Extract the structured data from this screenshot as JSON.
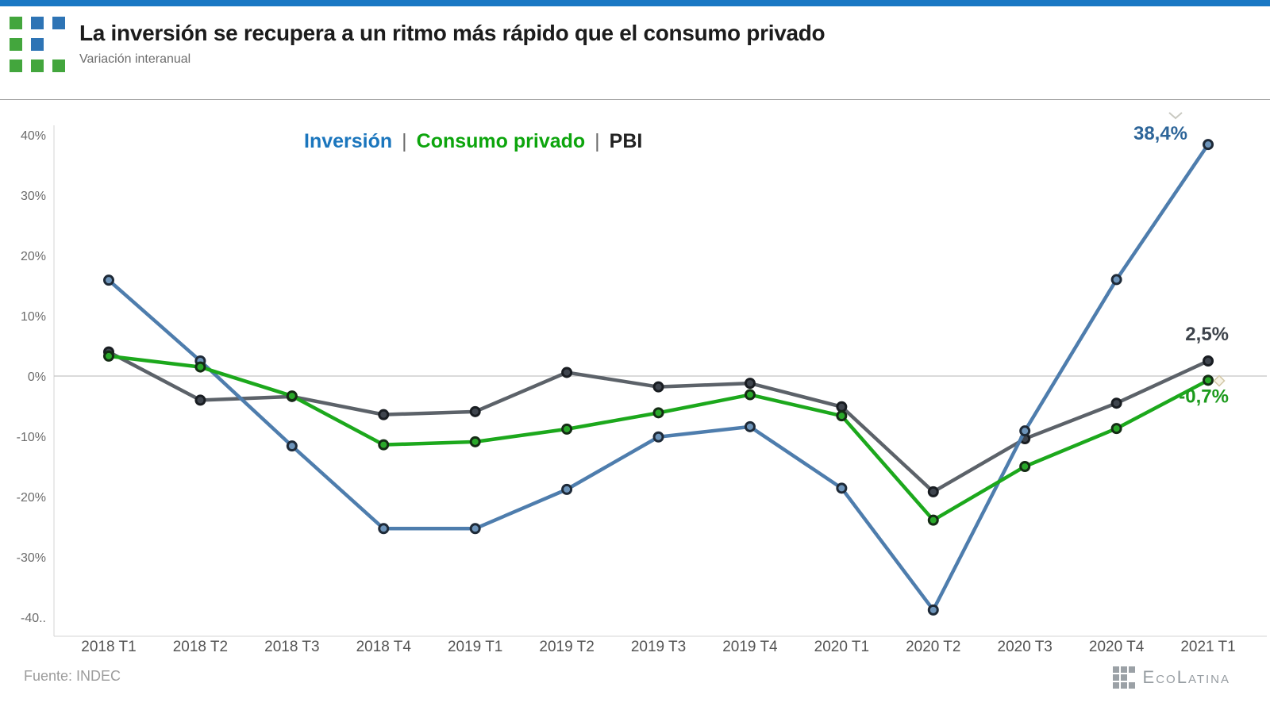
{
  "header": {
    "title": "La inversión se recupera a un ritmo más rápido que el consumo privado",
    "subtitle": "Variación interanual",
    "top_bar_color": "#1a78c4",
    "logo_colors": {
      "green": "#43a63d",
      "blue": "#2e74b5"
    }
  },
  "legend": {
    "separator": "|",
    "items": [
      {
        "label": "Inversión",
        "color": "#1b76bd"
      },
      {
        "label": "Consumo privado",
        "color": "#0da50d"
      },
      {
        "label": "PBI",
        "color": "#222222"
      }
    ]
  },
  "chart_data": {
    "type": "line",
    "title": "La inversión se recupera a un ritmo más rápido que el consumo privado",
    "subtitle": "Variación interanual",
    "xlabel": "",
    "ylabel": "Variación interanual (%)",
    "grid": "zero-line-only",
    "legend_position": "top-center",
    "ylim": [
      -42,
      43
    ],
    "categories": [
      "2018 T1",
      "2018 T2",
      "2018 T3",
      "2018 T4",
      "2019 T1",
      "2019 T2",
      "2019 T3",
      "2019 T4",
      "2020 T1",
      "2020 T2",
      "2020 T3",
      "2020 T4",
      "2021 T1"
    ],
    "y_ticks": [
      {
        "label": "40%",
        "value": 40
      },
      {
        "label": "30%",
        "value": 30
      },
      {
        "label": "20%",
        "value": 20
      },
      {
        "label": "10%",
        "value": 10
      },
      {
        "label": "0%",
        "value": 0
      },
      {
        "label": "-10%",
        "value": -10
      },
      {
        "label": "-20%",
        "value": -20
      },
      {
        "label": "-30%",
        "value": -30
      },
      {
        "label": "-40..",
        "value": -40
      }
    ],
    "series": [
      {
        "id": "inversion",
        "name": "Inversión",
        "color": "#4e7dad",
        "marker_fill": "#6d94ba",
        "ring_color": "#1e2a38",
        "label_color": "#2d6599",
        "end_label": "38,4%",
        "values": [
          15.9,
          2.5,
          -11.6,
          -25.3,
          -25.3,
          -18.8,
          -10.1,
          -8.4,
          -18.6,
          -38.8,
          -9.1,
          16.0,
          38.4
        ]
      },
      {
        "id": "consumo-privado",
        "name": "Consumo privado",
        "color": "#1ca81c",
        "marker_fill": "#2aa82a",
        "ring_color": "#142c14",
        "label_color": "#1c9a1c",
        "end_label": "-0,7%",
        "values": [
          3.3,
          1.5,
          -3.3,
          -11.4,
          -10.9,
          -8.8,
          -6.1,
          -3.1,
          -6.6,
          -23.9,
          -15.0,
          -8.7,
          -0.7
        ]
      },
      {
        "id": "pbi",
        "name": "PBI",
        "color": "#5c6269",
        "marker_fill": "#3f454e",
        "ring_color": "#191d22",
        "label_color": "#3d434b",
        "end_label": "2,5%",
        "values": [
          4.0,
          -4.0,
          -3.4,
          -6.4,
          -5.9,
          0.6,
          -1.8,
          -1.2,
          -5.1,
          -19.2,
          -10.4,
          -4.5,
          2.5
        ]
      }
    ],
    "icons": {
      "top_right": "chevron-down-icon",
      "green_end_marker": "diamond-icon"
    }
  },
  "footer": {
    "source": "Fuente: INDEC",
    "brand": "EcoLatina"
  }
}
